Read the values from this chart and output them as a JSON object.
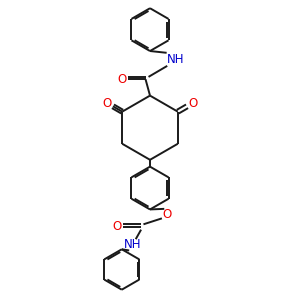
{
  "background_color": "#ffffff",
  "line_color": "#1a1a1a",
  "oxygen_color": "#ee0000",
  "nitrogen_color": "#0000cc",
  "lw": 1.4,
  "fs": 8.5,
  "figsize": [
    3.0,
    3.0
  ],
  "dpi": 100,
  "xlim": [
    0,
    10
  ],
  "ylim": [
    0,
    10
  ]
}
